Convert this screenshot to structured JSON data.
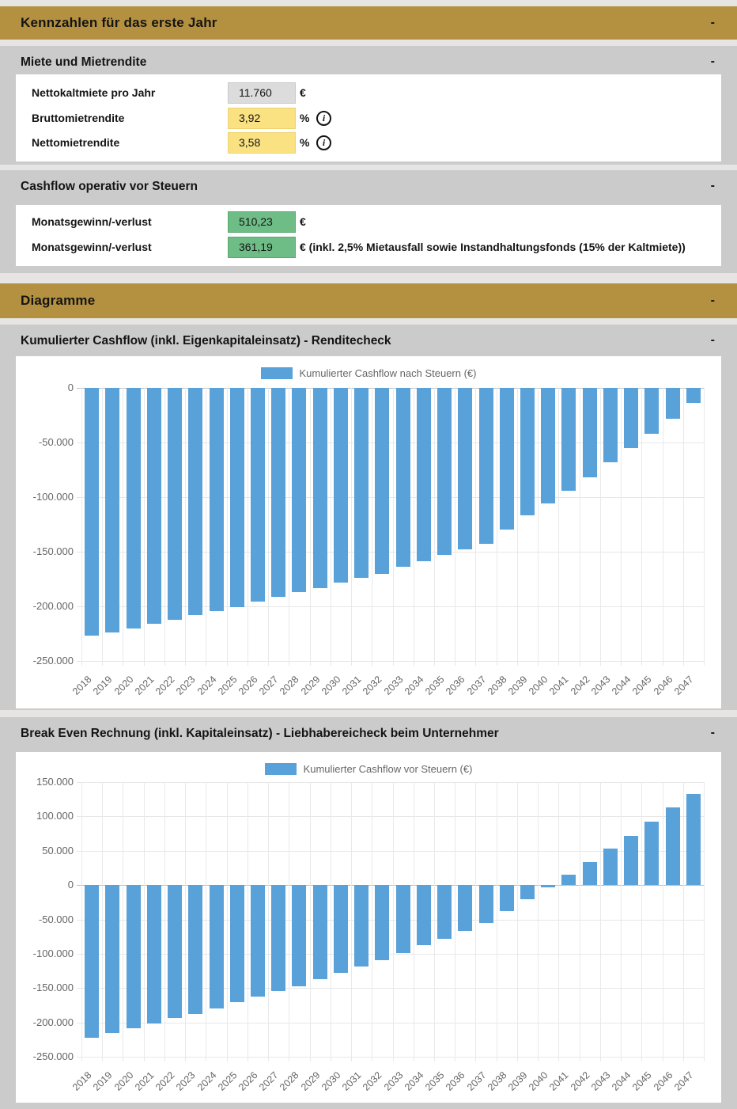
{
  "icons": {
    "info": "i"
  },
  "colors": {
    "gold": "#b49140",
    "block_gray": "#cbcbcb",
    "page_gray": "#e6e5e3",
    "input_gray": "#dcdcdc",
    "input_yellow": "#fae181",
    "input_green": "#6ebd86",
    "bar_blue": "#58a1d9"
  },
  "sections": {
    "kennzahlen": {
      "title": "Kennzahlen für das erste Jahr",
      "collapse": "-"
    },
    "miete": {
      "title": "Miete und Mietrendite",
      "collapse": "-",
      "fields": [
        {
          "label": "Nettokaltmiete pro Jahr",
          "value": "11.760",
          "suffix": "€"
        },
        {
          "label": "Bruttomietrendite",
          "value": "3,92",
          "suffix": "%"
        },
        {
          "label": "Nettomietrendite",
          "value": "3,58",
          "suffix": "%"
        }
      ]
    },
    "cashflow": {
      "title": "Cashflow operativ vor Steuern",
      "collapse": "-",
      "fields": [
        {
          "label": "Monatsgewinn/-verlust",
          "value": "510,23",
          "suffix": "€"
        },
        {
          "label": "Monatsgewinn/-verlust",
          "value": "361,19",
          "suffix": "€ (inkl. 2,5% Mietausfall sowie Instandhaltungsfonds (15% der Kaltmiete))"
        }
      ]
    },
    "diagramme": {
      "title": "Diagramme",
      "collapse": "-"
    },
    "chart1": {
      "title": "Kumulierter Cashflow (inkl. Eigenkapitaleinsatz) - Renditecheck",
      "collapse": "-"
    },
    "chart2": {
      "title": "Break Even Rechnung (inkl. Kapitaleinsatz) - Liebhabereicheck beim Unternehmer",
      "collapse": "-"
    }
  },
  "chart_data": [
    {
      "type": "bar",
      "title": "Kumulierter Cashflow (inkl. Eigenkapitaleinsatz) - Renditecheck",
      "legend": "Kumulierter Cashflow nach Steuern (€)",
      "legend_position": "top",
      "grid": true,
      "ylim": [
        -250000,
        0
      ],
      "ytick_step": 50000,
      "categories": [
        "2018",
        "2019",
        "2020",
        "2021",
        "2022",
        "2023",
        "2024",
        "2025",
        "2026",
        "2027",
        "2028",
        "2029",
        "2030",
        "2031",
        "2032",
        "2033",
        "2034",
        "2035",
        "2036",
        "2037",
        "2038",
        "2039",
        "2040",
        "2041",
        "2042",
        "2043",
        "2044",
        "2045",
        "2046",
        "2047"
      ],
      "values": [
        -227000,
        -224000,
        -220000,
        -216000,
        -212000,
        -208000,
        -204000,
        -201000,
        -196000,
        -191000,
        -187000,
        -183000,
        -178000,
        -174000,
        -170000,
        -164000,
        -159000,
        -153000,
        -148000,
        -143000,
        -130000,
        -117000,
        -106000,
        -94000,
        -82000,
        -68000,
        -55000,
        -42000,
        -28000,
        -14000
      ]
    },
    {
      "type": "bar",
      "title": "Break Even Rechnung (inkl. Kapitaleinsatz) - Liebhabereicheck beim Unternehmer",
      "legend": "Kumulierter Cashflow vor Steuern (€)",
      "legend_position": "top",
      "grid": true,
      "ylim": [
        -250000,
        150000
      ],
      "ytick_step": 50000,
      "categories": [
        "2018",
        "2019",
        "2020",
        "2021",
        "2022",
        "2023",
        "2024",
        "2025",
        "2026",
        "2027",
        "2028",
        "2029",
        "2030",
        "2031",
        "2032",
        "2033",
        "2034",
        "2035",
        "2036",
        "2037",
        "2038",
        "2039",
        "2040",
        "2041",
        "2042",
        "2043",
        "2044",
        "2045",
        "2046",
        "2047"
      ],
      "values": [
        -222000,
        -215000,
        -209000,
        -202000,
        -194000,
        -188000,
        -180000,
        -171000,
        -163000,
        -154000,
        -147000,
        -137000,
        -128000,
        -119000,
        -109000,
        -99000,
        -88000,
        -78000,
        -67000,
        -55000,
        -38000,
        -21000,
        -3000,
        15000,
        34000,
        53000,
        72000,
        92000,
        113000,
        133000
      ]
    }
  ]
}
